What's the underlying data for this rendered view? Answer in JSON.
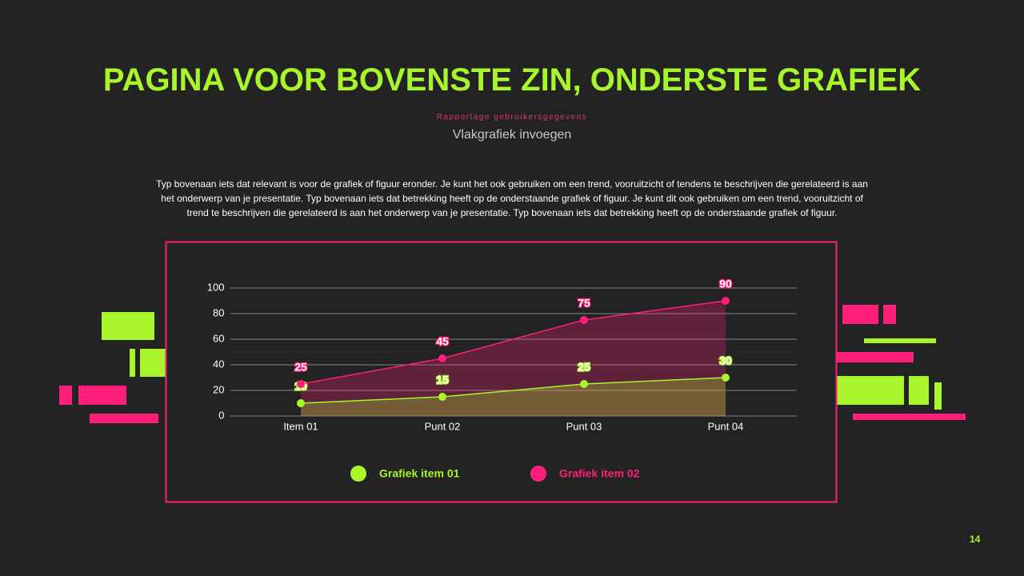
{
  "slide": {
    "title": "PAGINA VOOR BOVENSTE ZIN, ONDERSTE GRAFIEK",
    "kicker": "Rapportage gebruikersgegevens",
    "subtitle": "Vlakgrafiek invoegen",
    "body": "Typ bovenaan iets dat relevant is voor de grafiek of figuur eronder. Je kunt het ook gebruiken om een trend, vooruitzicht of tendens te beschrijven die gerelateerd is aan het onderwerp van je presentatie. Typ bovenaan iets dat betrekking heeft op de onderstaande grafiek of figuur. Je kunt dit ook gebruiken om een trend, vooruitzicht of trend te beschrijven die gerelateerd is aan het onderwerp van je presentatie. Typ bovenaan iets dat betrekking heeft op de onderstaande grafiek of figuur.",
    "page_number": "14"
  },
  "chart_data": {
    "type": "area",
    "categories": [
      "Item 01",
      "Punt 02",
      "Punt 03",
      "Punt 04"
    ],
    "series": [
      {
        "name": "Grafiek item 01",
        "color": "#a8f52c",
        "values": [
          10,
          15,
          25,
          30
        ]
      },
      {
        "name": "Grafiek item 02",
        "color": "#ff1f7a",
        "values": [
          25,
          45,
          75,
          90
        ]
      }
    ],
    "ylim": [
      0,
      100
    ],
    "yticks": [
      0,
      20,
      40,
      60,
      80,
      100
    ],
    "grid": true
  }
}
